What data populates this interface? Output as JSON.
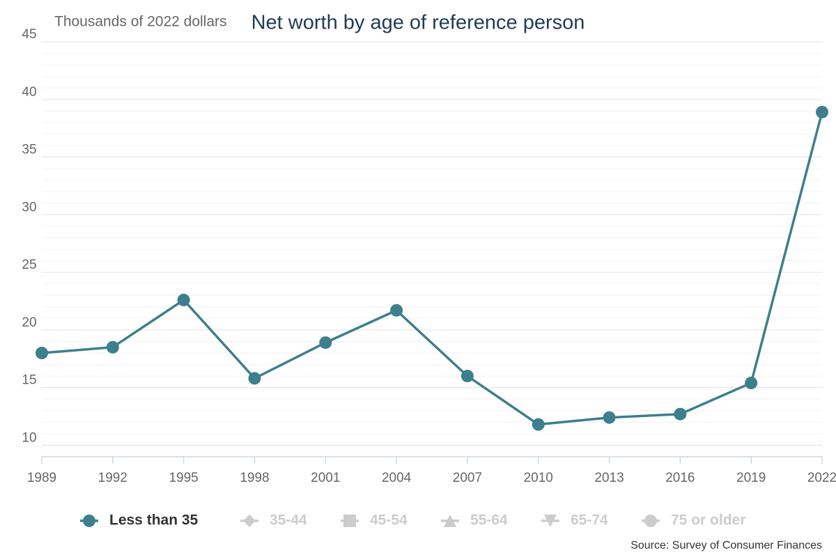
{
  "chart_data": {
    "type": "line",
    "title": "Net worth by age of reference person",
    "subtitle": "Thousands of 2022 dollars",
    "source": "Source: Survey of Consumer Finances",
    "x": [
      1989,
      1992,
      1995,
      1998,
      2001,
      2004,
      2007,
      2010,
      2013,
      2016,
      2019,
      2022
    ],
    "xlim": [
      1989,
      2022
    ],
    "xticks": [
      1989,
      1992,
      1995,
      1998,
      2001,
      2004,
      2007,
      2010,
      2013,
      2016,
      2019,
      2022
    ],
    "ylim": [
      9,
      45
    ],
    "yticks": [
      10,
      15,
      20,
      25,
      30,
      35,
      40,
      45
    ],
    "yminorticks": [
      9,
      11,
      12,
      13,
      14,
      16,
      17,
      18,
      19,
      21,
      22,
      23,
      24,
      26,
      27,
      28,
      29,
      31,
      32,
      33,
      34,
      36,
      37,
      38,
      39,
      41,
      42,
      43,
      44
    ],
    "grid": true,
    "series": [
      {
        "name": "Less than 35",
        "color": "#3d7f8c",
        "marker": "circle",
        "values": [
          18.0,
          18.5,
          22.6,
          15.8,
          18.9,
          21.7,
          16.0,
          11.8,
          12.4,
          12.7,
          15.4,
          38.9
        ]
      }
    ],
    "legend": [
      {
        "name": "Less than 35",
        "color": "#3d7f8c",
        "marker": "circle"
      },
      {
        "name": "35-44",
        "color": "#cccccc",
        "marker": "diamond"
      },
      {
        "name": "45-54",
        "color": "#cccccc",
        "marker": "square"
      },
      {
        "name": "55-64",
        "color": "#cccccc",
        "marker": "triangle"
      },
      {
        "name": "65-74",
        "color": "#cccccc",
        "marker": "triangle-down"
      },
      {
        "name": "75 or older",
        "color": "#cccccc",
        "marker": "circle"
      }
    ]
  }
}
